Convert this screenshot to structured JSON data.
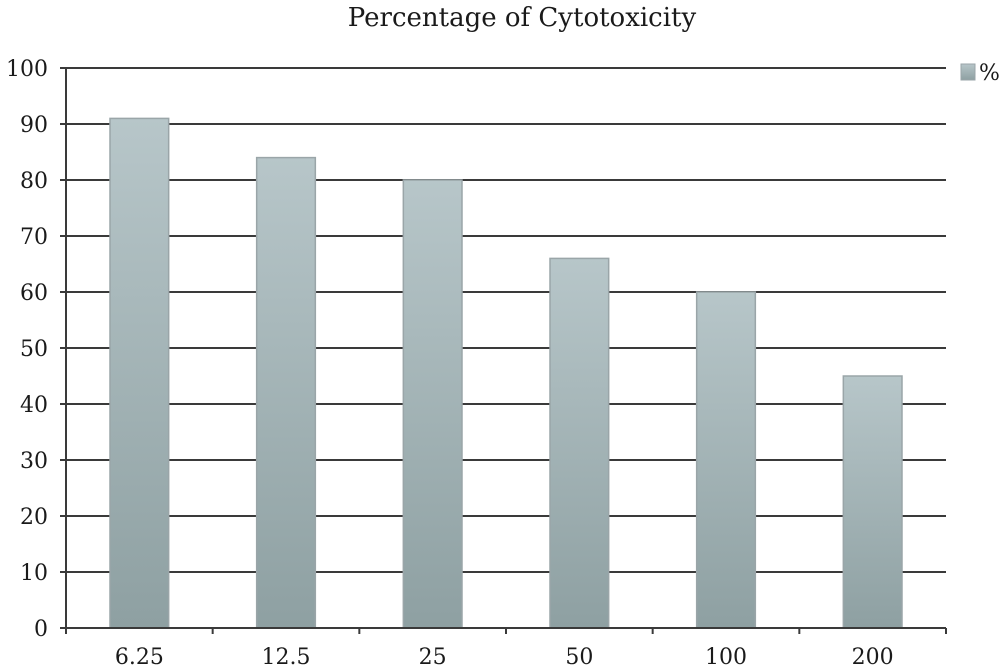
{
  "chart_data": {
    "type": "bar",
    "title": "Percentage of Cytotoxicity",
    "xlabel": "",
    "ylabel": "",
    "categories": [
      "6.25",
      "12.5",
      "25",
      "50",
      "100",
      "200"
    ],
    "series": [
      {
        "name": "%",
        "values": [
          91,
          84,
          80,
          66,
          60,
          45
        ]
      }
    ],
    "ylim": [
      0,
      100
    ],
    "yticks": [
      "0",
      "10",
      "20",
      "30",
      "40",
      "50",
      "60",
      "70",
      "80",
      "90",
      "100"
    ],
    "grid": true,
    "legend": "top-right",
    "colors": {
      "bar_top": "#b7c6c9",
      "bar_bottom": "#8ea0a2",
      "grid": "#3a3a3a"
    }
  }
}
